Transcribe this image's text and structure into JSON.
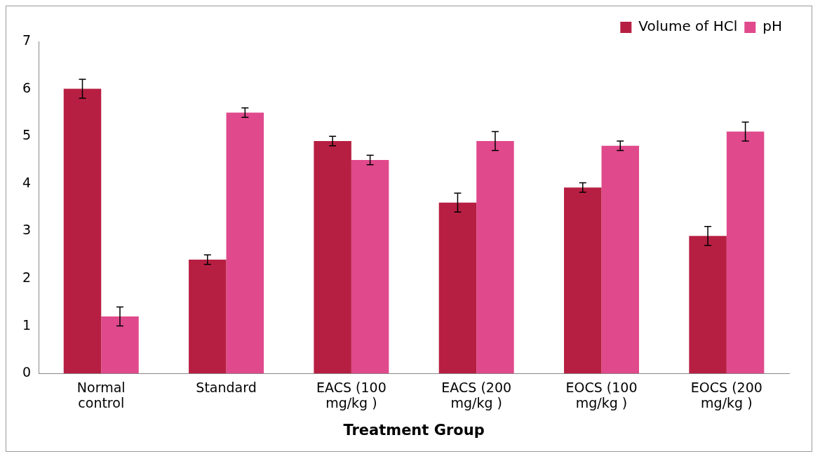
{
  "chart_data": {
    "type": "bar",
    "xlabel": "Treatment Group",
    "categories": [
      "Normal control",
      "Standard",
      "EACS (100 mg/kg )",
      "EACS (200 mg/kg )",
      "EOCS (100 mg/kg )",
      "EOCS (200 mg/kg )"
    ],
    "series": [
      {
        "name": "Volume of HCl",
        "color": "#b71f42",
        "values": [
          6.0,
          2.4,
          4.9,
          3.6,
          3.92,
          2.9
        ],
        "errors": [
          0.2,
          0.1,
          0.1,
          0.2,
          0.1,
          0.2
        ]
      },
      {
        "name": "pH",
        "color": "#e0498c",
        "values": [
          1.2,
          5.5,
          4.5,
          4.9,
          4.8,
          5.1
        ],
        "errors": [
          0.2,
          0.1,
          0.1,
          0.2,
          0.1,
          0.2
        ]
      }
    ],
    "ylim": [
      0,
      7
    ],
    "yticks": [
      0,
      1,
      2,
      3,
      4,
      5,
      6,
      7
    ],
    "grid": false,
    "legend": "top right"
  }
}
